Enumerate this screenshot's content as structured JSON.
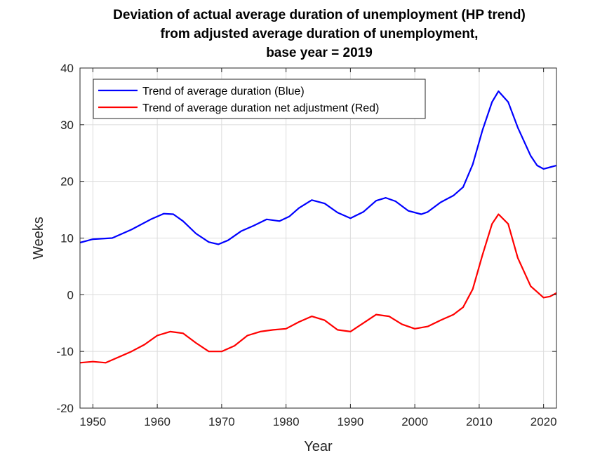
{
  "chart_data": {
    "type": "line",
    "title": [
      "Deviation of actual average duration of unemployment (HP trend)",
      "from adjusted average duration of unemployment,",
      "base year = 2019"
    ],
    "xlabel": "Year",
    "ylabel": "Weeks",
    "xlim": [
      1948,
      2022
    ],
    "ylim": [
      -20,
      40
    ],
    "xticks": [
      1950,
      1960,
      1970,
      1980,
      1990,
      2000,
      2010,
      2020
    ],
    "yticks": [
      -20,
      -10,
      0,
      10,
      20,
      30,
      40
    ],
    "grid": true,
    "legend_position": "top-left",
    "series": [
      {
        "name": "Trend of average duration (Blue)",
        "color": "#0000ff",
        "x": [
          1948,
          1950,
          1953,
          1956,
          1959,
          1961,
          1962.5,
          1964,
          1966,
          1968,
          1969.5,
          1971,
          1973,
          1975,
          1977,
          1979,
          1980.5,
          1982,
          1984,
          1986,
          1988,
          1990,
          1992,
          1994,
          1995.5,
          1997,
          1999,
          2001,
          2002,
          2004,
          2006,
          2007.5,
          2009,
          2010.5,
          2012,
          2013,
          2014.5,
          2016,
          2018,
          2019,
          2020,
          2021,
          2022
        ],
        "y": [
          9.2,
          9.8,
          10.0,
          11.5,
          13.3,
          14.3,
          14.2,
          13.0,
          10.8,
          9.3,
          8.9,
          9.6,
          11.2,
          12.2,
          13.3,
          13.0,
          13.8,
          15.3,
          16.7,
          16.1,
          14.5,
          13.5,
          14.6,
          16.6,
          17.1,
          16.5,
          14.8,
          14.2,
          14.6,
          16.3,
          17.5,
          19.0,
          23.0,
          29.0,
          34.0,
          35.9,
          34.0,
          29.5,
          24.5,
          22.8,
          22.2,
          22.5,
          22.8
        ]
      },
      {
        "name": "Trend of average duration net adjustment (Red)",
        "color": "#ff0000",
        "x": [
          1948,
          1950,
          1952,
          1954,
          1956,
          1958,
          1960,
          1962,
          1964,
          1966,
          1968,
          1970,
          1972,
          1974,
          1976,
          1978,
          1980,
          1982,
          1984,
          1986,
          1988,
          1990,
          1992,
          1994,
          1996,
          1998,
          2000,
          2002,
          2004,
          2006,
          2007.5,
          2009,
          2010.5,
          2012,
          2013,
          2014.5,
          2016,
          2018,
          2019,
          2020,
          2021,
          2022
        ],
        "y": [
          -12.0,
          -11.8,
          -12.0,
          -11.0,
          -10.0,
          -8.8,
          -7.2,
          -6.5,
          -6.8,
          -8.5,
          -10.0,
          -10.0,
          -9.0,
          -7.2,
          -6.5,
          -6.2,
          -6.0,
          -4.8,
          -3.8,
          -4.5,
          -6.2,
          -6.5,
          -5.0,
          -3.5,
          -3.8,
          -5.2,
          -6.0,
          -5.6,
          -4.5,
          -3.5,
          -2.2,
          1.0,
          7.0,
          12.5,
          14.2,
          12.5,
          6.5,
          1.5,
          0.5,
          -0.5,
          -0.3,
          0.3
        ]
      }
    ]
  }
}
